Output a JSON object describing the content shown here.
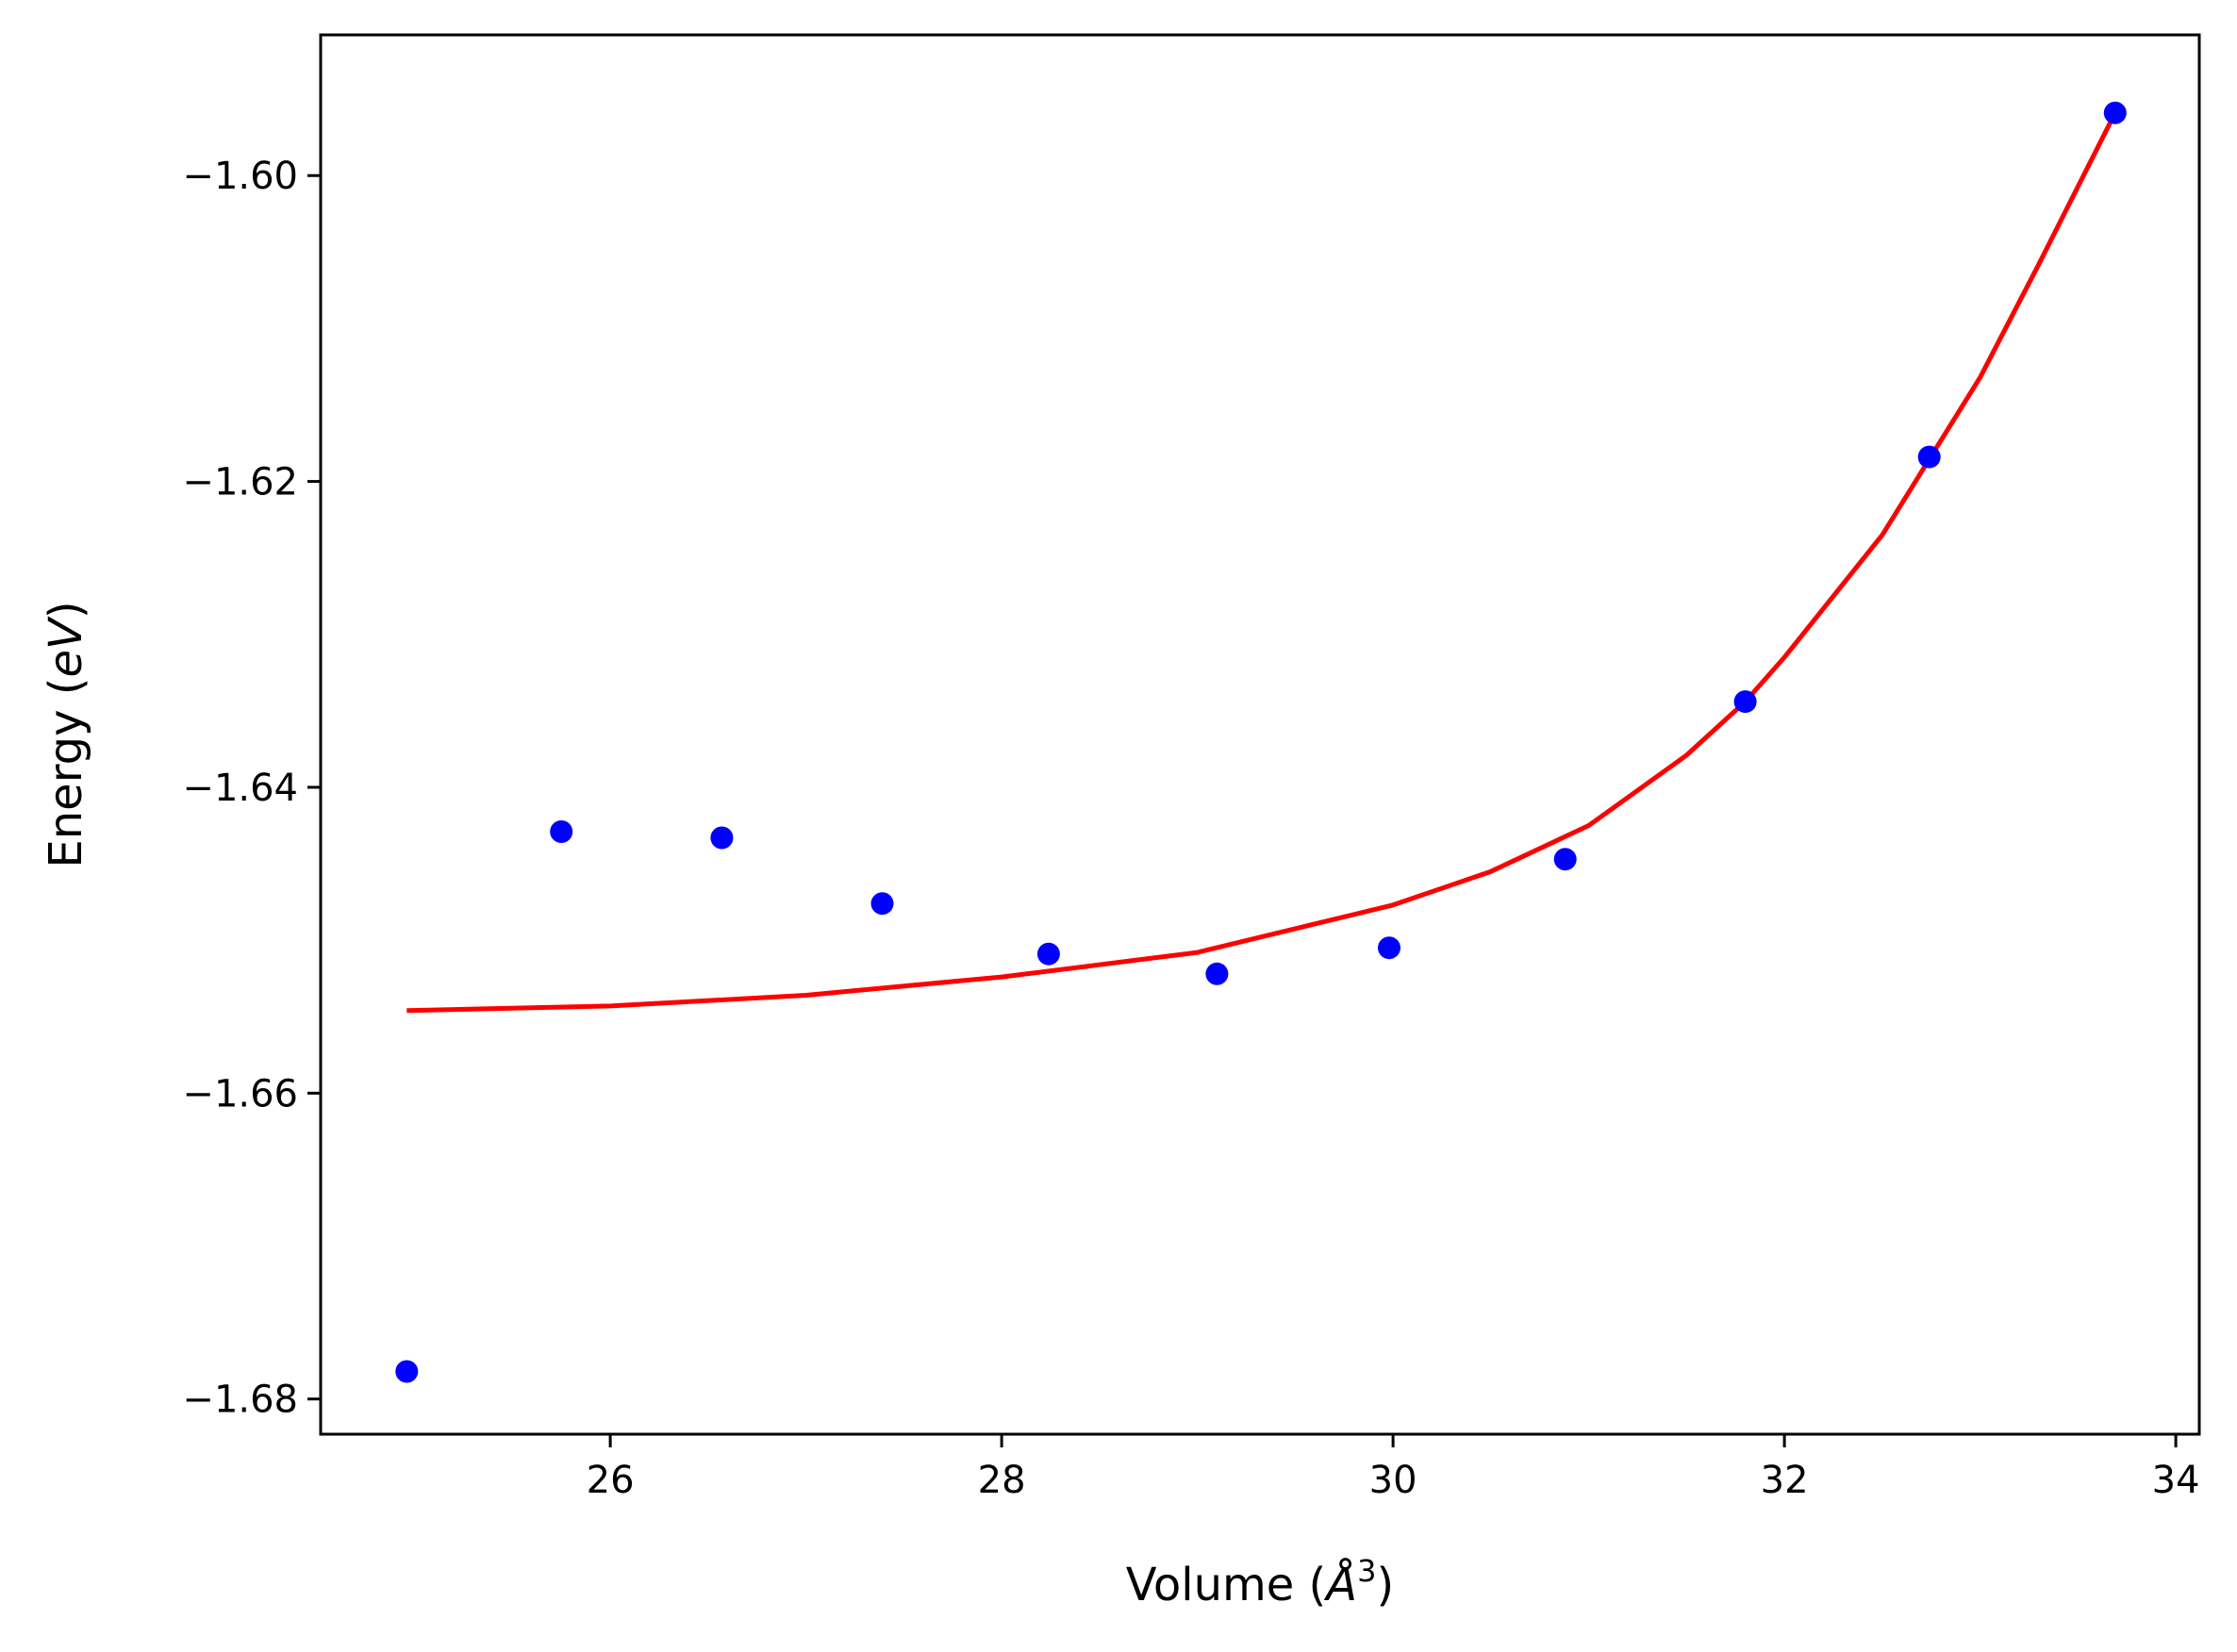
{
  "chart_data": {
    "type": "scatter",
    "xlabel": "Volume (",
    "xlabel_symbol": "Å",
    "xlabel_exponent": "3",
    "xlabel_close": ")",
    "ylabel": "Energy (",
    "ylabel_symbol": "eV",
    "ylabel_close": ")",
    "xlim": [
      24.52,
      34.12
    ],
    "ylim": [
      -1.6823,
      -1.5908
    ],
    "xticks": [
      26,
      28,
      30,
      32,
      34
    ],
    "xtick_labels": [
      "26",
      "28",
      "30",
      "32",
      "34"
    ],
    "yticks": [
      -1.6,
      -1.62,
      -1.64,
      -1.66,
      -1.68
    ],
    "ytick_labels": [
      "−1.60",
      "−1.62",
      "−1.64",
      "−1.66",
      "−1.68"
    ],
    "grid": false,
    "series": [
      {
        "kind": "points",
        "color": "#0000ff",
        "x": [
          24.96,
          25.75,
          26.57,
          27.39,
          28.24,
          29.1,
          29.98,
          30.88,
          31.8,
          32.74,
          33.69
        ],
        "y": [
          -1.6782,
          -1.6429,
          -1.6433,
          -1.6476,
          -1.6509,
          -1.6522,
          -1.6505,
          -1.6447,
          -1.6344,
          -1.6184,
          -1.5959
        ]
      },
      {
        "kind": "line",
        "color": "#ff0000",
        "x": [
          24.96,
          26.0,
          27.0,
          28.0,
          29.0,
          30.0,
          30.5,
          31.0,
          31.5,
          31.8,
          32.0,
          32.5,
          33.0,
          33.3,
          33.69
        ],
        "y": [
          -1.6546,
          -1.6543,
          -1.6536,
          -1.6524,
          -1.6508,
          -1.6477,
          -1.6455,
          -1.6425,
          -1.6379,
          -1.6344,
          -1.6315,
          -1.6235,
          -1.6132,
          -1.6058,
          -1.5959
        ]
      }
    ]
  }
}
